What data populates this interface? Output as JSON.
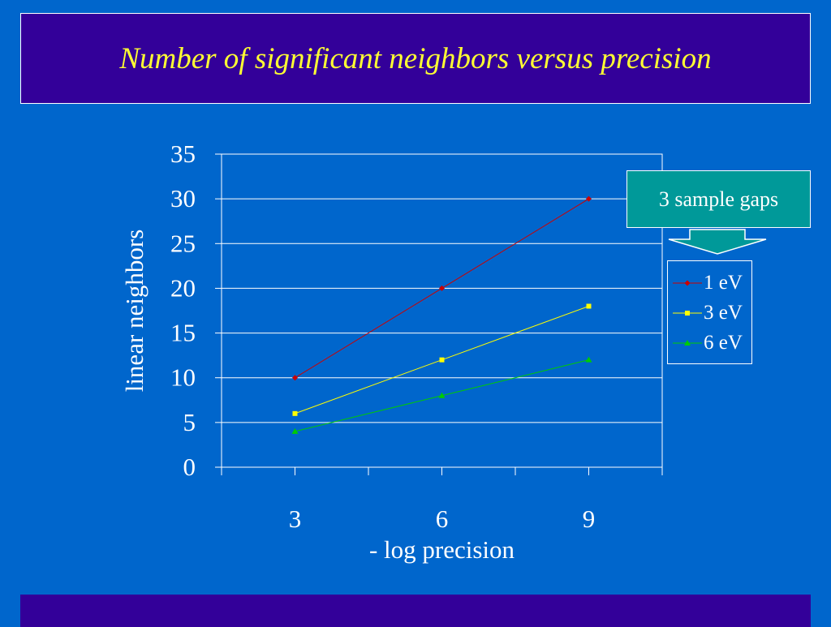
{
  "slide": {
    "title": "Number of significant neighbors versus precision",
    "background": "#0066cc",
    "banner_color": "#330099",
    "title_color": "#ffff33"
  },
  "callout": {
    "label": "3 sample gaps",
    "color": "#009999"
  },
  "chart_data": {
    "type": "line",
    "x": [
      3,
      6,
      9
    ],
    "xlabel": "- log precision",
    "ylabel": "linear neighbors",
    "ylim": [
      0,
      35
    ],
    "yticks": [
      0,
      5,
      10,
      15,
      20,
      25,
      30,
      35
    ],
    "grid": true,
    "legend_position": "right",
    "series": [
      {
        "name": "1 eV",
        "values": [
          10,
          20,
          30
        ],
        "color": "#cc0000",
        "marker": "diamond"
      },
      {
        "name": "3 eV",
        "values": [
          6,
          12,
          18
        ],
        "color": "#ffff00",
        "marker": "square"
      },
      {
        "name": "6 eV",
        "values": [
          4,
          8,
          12
        ],
        "color": "#00cc00",
        "marker": "triangle"
      }
    ]
  }
}
